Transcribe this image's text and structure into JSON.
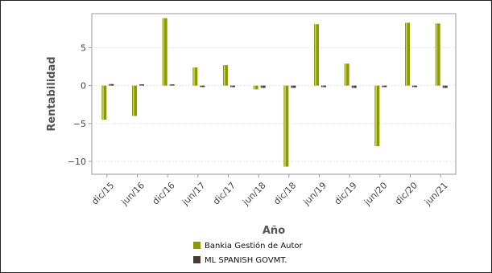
{
  "chart_data": {
    "type": "bar",
    "title": "",
    "xlabel": "Año",
    "ylabel": "Rentabilidad",
    "categories": [
      "dic/15",
      "jun/16",
      "dic/16",
      "jun/17",
      "dic/17",
      "jun/18",
      "dic/18",
      "jun/19",
      "dic/19",
      "jun/20",
      "dic/20",
      "jun/21"
    ],
    "series": [
      {
        "name": "Bankia Gestión de Autor",
        "color": "#8a9a00",
        "values": [
          -4.5,
          -4.0,
          8.9,
          2.4,
          2.7,
          -0.5,
          -10.7,
          8.1,
          2.9,
          -8.0,
          8.3,
          8.2
        ]
      },
      {
        "name": "ML SPANISH GOVMT.",
        "color": "#4a3a32",
        "values": [
          0.2,
          0.0,
          0.05,
          -0.2,
          -0.2,
          -0.3,
          -0.3,
          -0.2,
          -0.3,
          -0.2,
          -0.2,
          -0.3
        ]
      }
    ],
    "ylim": [
      -11.7,
      9.5
    ],
    "yticks": [
      -10,
      -5,
      0,
      5
    ],
    "grid": true,
    "legend_position": "bottom"
  }
}
